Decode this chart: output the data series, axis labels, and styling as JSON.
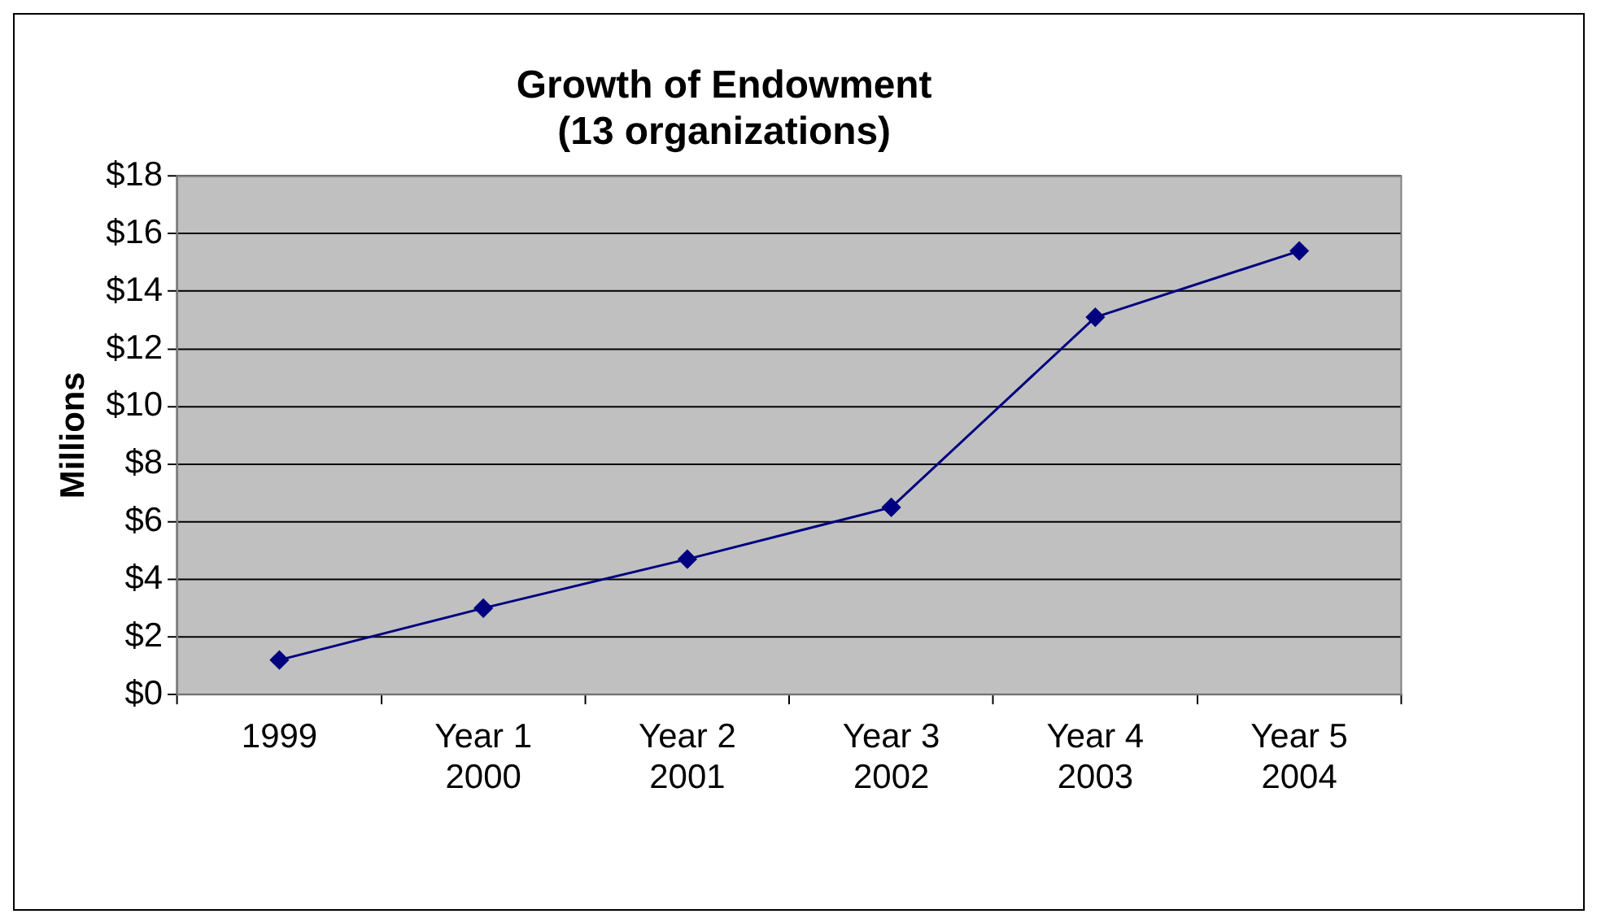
{
  "chart_data": {
    "type": "line",
    "title": "Growth of Endowment\n(13 organizations)",
    "ylabel": "Millions",
    "categories": [
      "1999",
      "Year 1\n2000",
      "Year 2\n2001",
      "Year 3\n2002",
      "Year 4\n2003",
      "Year 5\n2004"
    ],
    "series": [
      {
        "color": "#000080",
        "values": [
          1.2,
          3.0,
          4.7,
          6.5,
          13.1,
          15.4
        ]
      }
    ],
    "ylim": [
      0,
      18
    ],
    "yticks": [
      {
        "value": 0,
        "label": "$0"
      },
      {
        "value": 2,
        "label": "$2"
      },
      {
        "value": 4,
        "label": "$4"
      },
      {
        "value": 6,
        "label": "$6"
      },
      {
        "value": 8,
        "label": "$8"
      },
      {
        "value": 10,
        "label": "$10"
      },
      {
        "value": 12,
        "label": "$12"
      },
      {
        "value": 14,
        "label": "$14"
      },
      {
        "value": 16,
        "label": "$16"
      },
      {
        "value": 18,
        "label": "$18"
      }
    ],
    "grid": "y",
    "legend": false,
    "marker": "diamond",
    "line_style": "solid"
  }
}
